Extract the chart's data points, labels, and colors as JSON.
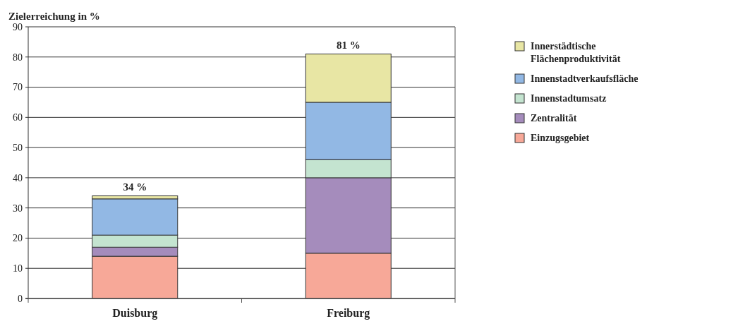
{
  "chart_data": {
    "type": "bar",
    "ylabel": "Zielerreichung in %",
    "categories": [
      "Duisburg",
      "Freiburg"
    ],
    "stacked": true,
    "series": [
      {
        "name": "Einzugsgebiet",
        "color": "#f7a898",
        "values": [
          14,
          15
        ]
      },
      {
        "name": "Zentralität",
        "color": "#a58cbc",
        "values": [
          3,
          25
        ]
      },
      {
        "name": "Innenstadtumsatz",
        "color": "#c4e4d0",
        "values": [
          4,
          6
        ]
      },
      {
        "name": "Innenstadtverkaufsfläche",
        "color": "#92b8e4",
        "values": [
          12,
          19
        ]
      },
      {
        "name": "Innerstädtische Flächenproduktivität",
        "color": "#e8e6a4",
        "values": [
          1,
          16
        ]
      }
    ],
    "totals": [
      "34 %",
      "81 %"
    ],
    "ylim": [
      0,
      90
    ],
    "yticks": [
      0,
      10,
      20,
      30,
      40,
      50,
      60,
      70,
      80,
      90
    ],
    "grid": "y",
    "legend": "right"
  }
}
